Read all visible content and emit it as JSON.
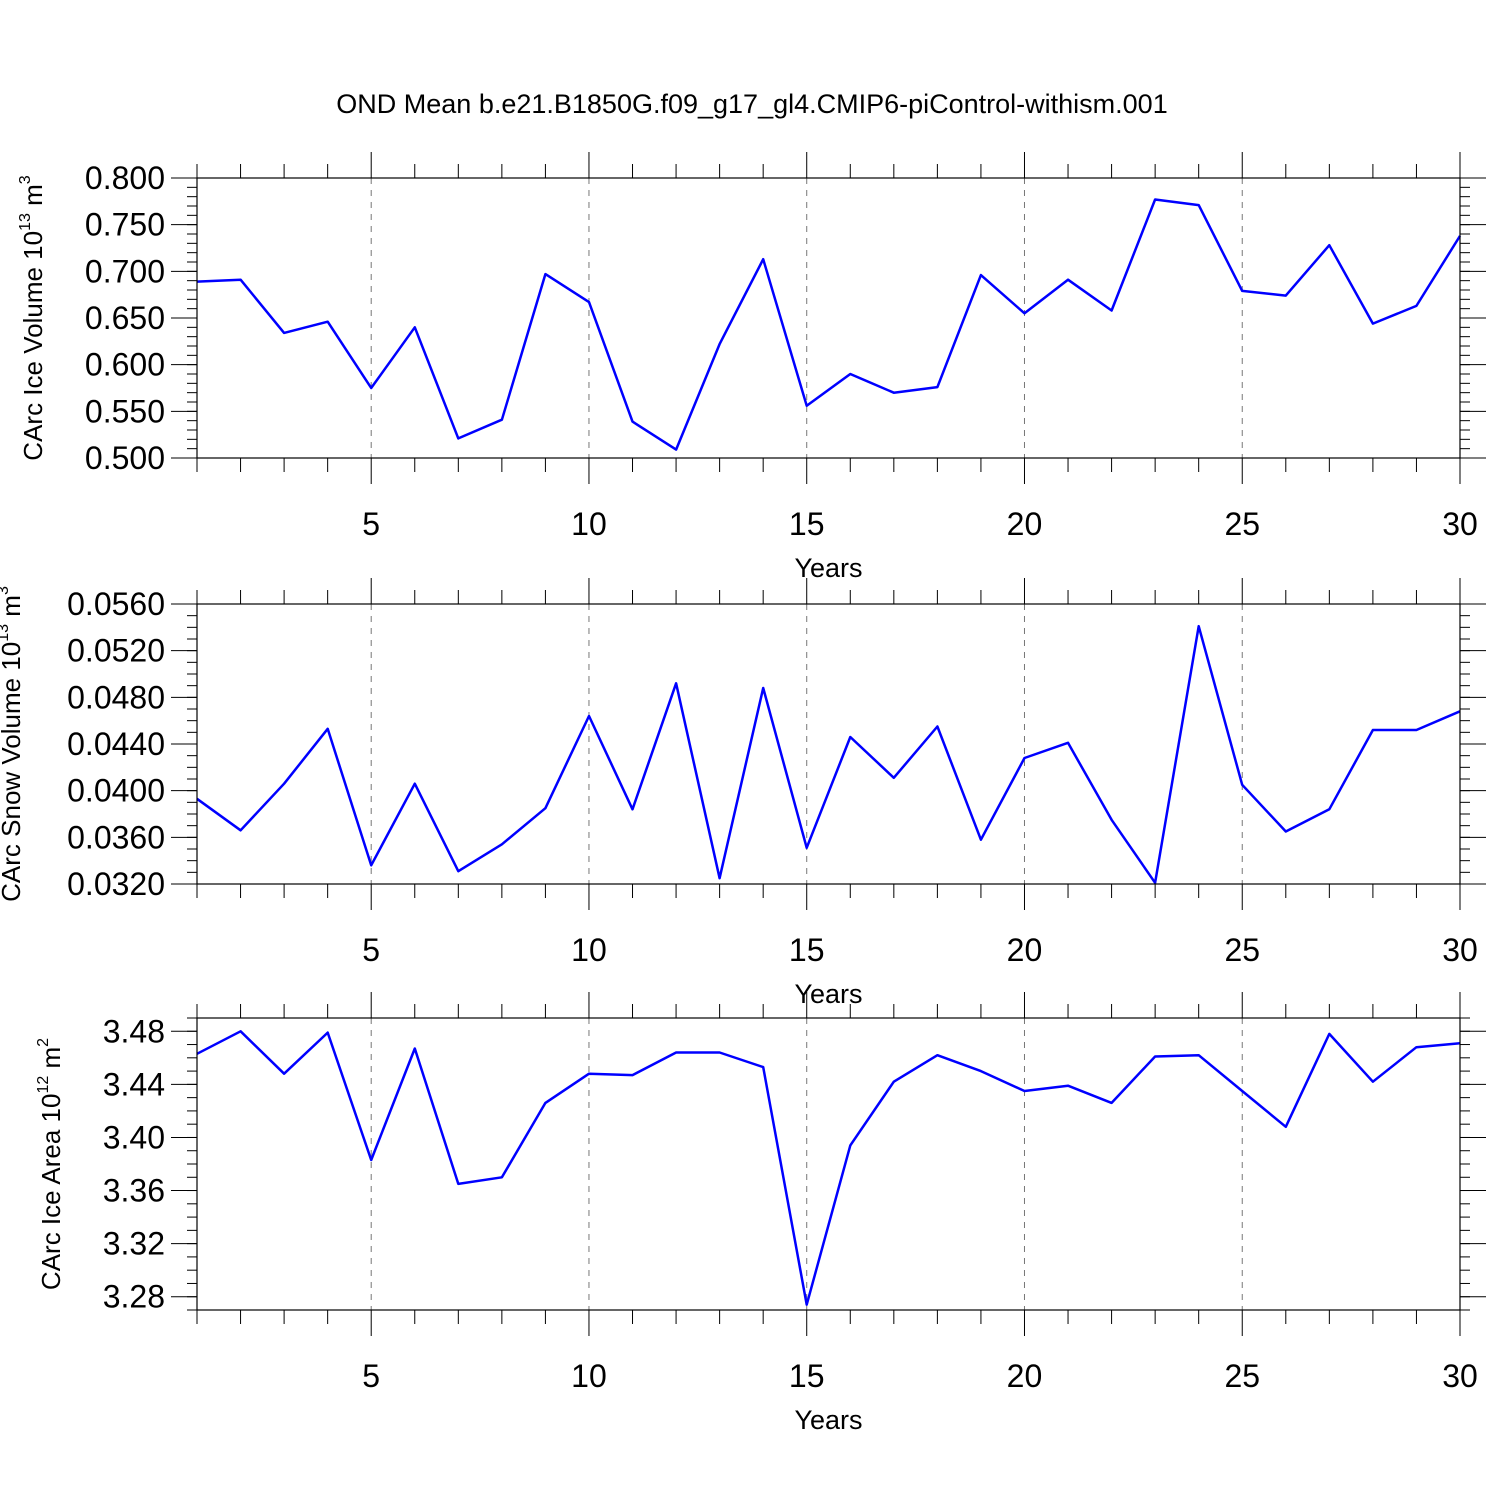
{
  "figure": {
    "title": "OND Mean b.e21.B1850G.f09_g17_gl4.CMIP6-piControl-withism.001"
  },
  "chart_data": [
    {
      "type": "line",
      "title": "",
      "xlabel": "Years",
      "ylabel": {
        "prefix": "CArc Ice Volume 10",
        "sup1": "13",
        "mid": " m",
        "sup2": "3"
      },
      "xlim": [
        1,
        30
      ],
      "ylim": [
        0.5,
        0.8
      ],
      "xticks": [
        5,
        10,
        15,
        20,
        25,
        30
      ],
      "xtick_labels": [
        "5",
        "10",
        "15",
        "20",
        "25",
        "30"
      ],
      "yticks": [
        0.5,
        0.55,
        0.6,
        0.65,
        0.7,
        0.75,
        0.8
      ],
      "ytick_labels": [
        "0.500",
        "0.550",
        "0.600",
        "0.650",
        "0.700",
        "0.750",
        "0.800"
      ],
      "ymajor_step": 0.05,
      "yminor_step": 0.01,
      "grid": "vertical-dashed-at-major-xticks",
      "color": "#0000ff",
      "x": [
        1,
        2,
        3,
        4,
        5,
        6,
        7,
        8,
        9,
        10,
        11,
        12,
        13,
        14,
        15,
        16,
        17,
        18,
        19,
        20,
        21,
        22,
        23,
        24,
        25,
        26,
        27,
        28,
        29,
        30
      ],
      "values": [
        0.689,
        0.691,
        0.634,
        0.646,
        0.575,
        0.64,
        0.521,
        0.541,
        0.697,
        0.667,
        0.539,
        0.509,
        0.622,
        0.713,
        0.556,
        0.59,
        0.57,
        0.576,
        0.696,
        0.655,
        0.691,
        0.658,
        0.777,
        0.771,
        0.679,
        0.674,
        0.728,
        0.644,
        0.663,
        0.738
      ]
    },
    {
      "type": "line",
      "title": "",
      "xlabel": "Years",
      "ylabel": {
        "prefix": "CArc Snow Volume 10",
        "sup1": "13",
        "mid": " m",
        "sup2": "3"
      },
      "xlim": [
        1,
        30
      ],
      "ylim": [
        0.032,
        0.056
      ],
      "xticks": [
        5,
        10,
        15,
        20,
        25,
        30
      ],
      "xtick_labels": [
        "5",
        "10",
        "15",
        "20",
        "25",
        "30"
      ],
      "yticks": [
        0.032,
        0.036,
        0.04,
        0.044,
        0.048,
        0.052,
        0.056
      ],
      "ytick_labels": [
        "0.0320",
        "0.0360",
        "0.0400",
        "0.0440",
        "0.0480",
        "0.0520",
        "0.0560"
      ],
      "ymajor_step": 0.004,
      "yminor_step": 0.001,
      "grid": "vertical-dashed-at-major-xticks",
      "color": "#0000ff",
      "x": [
        1,
        2,
        3,
        4,
        5,
        6,
        7,
        8,
        9,
        10,
        11,
        12,
        13,
        14,
        15,
        16,
        17,
        18,
        19,
        20,
        21,
        22,
        23,
        24,
        25,
        26,
        27,
        28,
        29,
        30
      ],
      "values": [
        0.0393,
        0.0366,
        0.0406,
        0.0453,
        0.0336,
        0.0406,
        0.0331,
        0.0354,
        0.0385,
        0.0464,
        0.0384,
        0.0492,
        0.0325,
        0.0488,
        0.0351,
        0.0446,
        0.0411,
        0.0455,
        0.0358,
        0.0428,
        0.0441,
        0.0375,
        0.0321,
        0.0541,
        0.0405,
        0.0365,
        0.0384,
        0.0452,
        0.0452,
        0.0468
      ]
    },
    {
      "type": "line",
      "title": "",
      "xlabel": "Years",
      "ylabel": {
        "prefix": "CArc Ice Area 10",
        "sup1": "12",
        "mid": " m",
        "sup2": "2"
      },
      "xlim": [
        1,
        30
      ],
      "ylim": [
        3.27,
        3.49
      ],
      "xticks": [
        5,
        10,
        15,
        20,
        25,
        30
      ],
      "xtick_labels": [
        "5",
        "10",
        "15",
        "20",
        "25",
        "30"
      ],
      "yticks": [
        3.28,
        3.32,
        3.36,
        3.4,
        3.44,
        3.48
      ],
      "ytick_labels": [
        "3.28",
        "3.32",
        "3.36",
        "3.40",
        "3.44",
        "3.48"
      ],
      "ymajor_step": 0.04,
      "yminor_step": 0.01,
      "grid": "vertical-dashed-at-major-xticks",
      "color": "#0000ff",
      "x": [
        1,
        2,
        3,
        4,
        5,
        6,
        7,
        8,
        9,
        10,
        11,
        12,
        13,
        14,
        15,
        16,
        17,
        18,
        19,
        20,
        21,
        22,
        23,
        24,
        25,
        26,
        27,
        28,
        29,
        30
      ],
      "values": [
        3.463,
        3.48,
        3.448,
        3.479,
        3.383,
        3.467,
        3.365,
        3.37,
        3.426,
        3.448,
        3.447,
        3.464,
        3.464,
        3.453,
        3.274,
        3.394,
        3.442,
        3.462,
        3.45,
        3.435,
        3.439,
        3.426,
        3.461,
        3.462,
        3.435,
        3.408,
        3.478,
        3.442,
        3.468,
        3.471
      ]
    }
  ]
}
